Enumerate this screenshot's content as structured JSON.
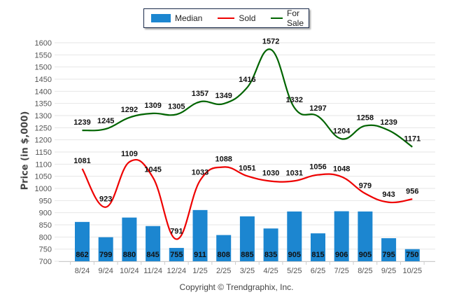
{
  "chart_data": {
    "type": "bar",
    "title": "",
    "xlabel": "",
    "ylabel": "Price (in $,000)",
    "ylim": [
      700,
      1600
    ],
    "ytick_step": 50,
    "grid": true,
    "legend_position": "top-center",
    "categories": [
      "8/24",
      "9/24",
      "10/24",
      "11/24",
      "12/24",
      "1/25",
      "2/25",
      "3/25",
      "4/25",
      "5/25",
      "6/25",
      "7/25",
      "8/25",
      "9/25",
      "10/25"
    ],
    "yticks": [
      700,
      750,
      800,
      850,
      900,
      950,
      1000,
      1050,
      1100,
      1150,
      1200,
      1250,
      1300,
      1350,
      1400,
      1450,
      1500,
      1550,
      1600
    ],
    "series": [
      {
        "name": "Median",
        "kind": "bar",
        "color": "#1c86d0",
        "values": [
          862,
          799,
          880,
          845,
          755,
          911,
          808,
          885,
          835,
          905,
          815,
          906,
          905,
          795,
          750
        ]
      },
      {
        "name": "Sold",
        "kind": "line",
        "color": "#ee0000",
        "values": [
          1081,
          923,
          1109,
          1045,
          791,
          1033,
          1088,
          1051,
          1030,
          1031,
          1056,
          1048,
          979,
          943,
          956
        ]
      },
      {
        "name": "For Sale",
        "kind": "line",
        "color": "#006400",
        "values": [
          1239,
          1245,
          1292,
          1309,
          1305,
          1357,
          1349,
          1416,
          1572,
          1332,
          1297,
          1204,
          1258,
          1239,
          1171
        ]
      }
    ]
  },
  "legend": {
    "median_label": "Median",
    "sold_label": "Sold",
    "forsale_label": "For Sale"
  },
  "footer": "Copyright © Trendgraphix, Inc."
}
